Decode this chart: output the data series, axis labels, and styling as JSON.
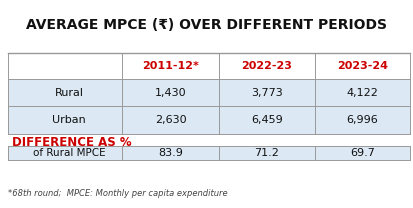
{
  "title": "AVERAGE MPCE (₹) OVER DIFFERENT PERIODS",
  "col_headers": [
    "2011-12*",
    "2022-23",
    "2023-24"
  ],
  "row_labels": [
    "Rural",
    "Urban"
  ],
  "values": [
    [
      "1,430",
      "3,773",
      "4,122"
    ],
    [
      "2,630",
      "6,459",
      "6,996"
    ]
  ],
  "diff_label1": "DIFFERENCE AS %",
  "diff_label2": "of Rural MPCE",
  "diff_values": [
    "83.9",
    "71.2",
    "69.7"
  ],
  "footnote": "*68th round;  MPCE: Monthly per capita expenditure",
  "header_color": "#cc0000",
  "diff_label_color": "#cc0000",
  "row_bg_color": "#dce9f5",
  "border_color": "#999999",
  "text_color": "#111111",
  "title_color": "#111111",
  "bg_color": "#ffffff"
}
